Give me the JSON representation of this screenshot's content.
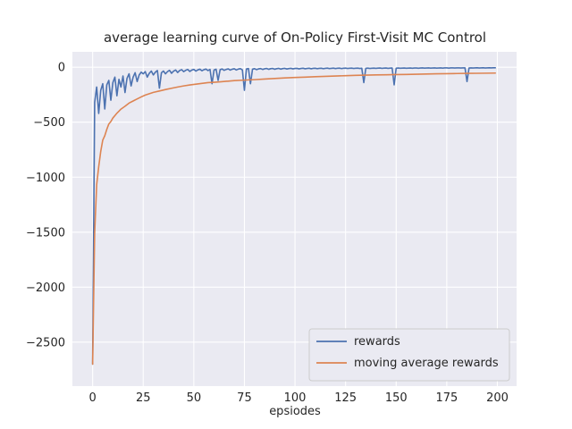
{
  "figure": {
    "title": "average learning curve of On-Policy First-Visit MC Control",
    "xlabel": "epsiodes"
  },
  "legend": {
    "items": [
      {
        "label": "rewards"
      },
      {
        "label": "moving average rewards"
      }
    ]
  },
  "chart_data": {
    "type": "line",
    "title": "average learning curve of On-Policy First-Visit MC Control",
    "xlabel": "epsiodes",
    "ylabel": "",
    "grid": true,
    "legend_position": "lower right",
    "xlim": [
      -10,
      209.5
    ],
    "ylim": [
      -2900,
      140
    ],
    "xticks": [
      {
        "value": 0,
        "label": "0"
      },
      {
        "value": 25,
        "label": "25"
      },
      {
        "value": 50,
        "label": "50"
      },
      {
        "value": 75,
        "label": "75"
      },
      {
        "value": 100,
        "label": "100"
      },
      {
        "value": 125,
        "label": "125"
      },
      {
        "value": 150,
        "label": "150"
      },
      {
        "value": 175,
        "label": "175"
      },
      {
        "value": 200,
        "label": "200"
      }
    ],
    "yticks": [
      {
        "value": 0,
        "label": "0"
      },
      {
        "value": -500,
        "label": "−500"
      },
      {
        "value": -1000,
        "label": "−1000"
      },
      {
        "value": -1500,
        "label": "−1500"
      },
      {
        "value": -2000,
        "label": "−2000"
      },
      {
        "value": -2500,
        "label": "−2500"
      }
    ],
    "colors": {
      "rewards": "#4c72b0",
      "moving_average": "#dd8452",
      "axes_background": "#eaeaf2",
      "grid": "#ffffff",
      "text": "#262626",
      "legend_face": "#eaeaf2",
      "legend_edge": "#cccccc"
    },
    "series": [
      {
        "name": "rewards",
        "color_key": "rewards",
        "x_start": 0,
        "x_step": 1,
        "values": [
          -2700,
          -320,
          -180,
          -420,
          -210,
          -150,
          -380,
          -160,
          -120,
          -300,
          -140,
          -90,
          -260,
          -110,
          -180,
          -80,
          -230,
          -100,
          -60,
          -170,
          -90,
          -50,
          -130,
          -70,
          -45,
          -60,
          -40,
          -90,
          -55,
          -35,
          -70,
          -45,
          -30,
          -190,
          -50,
          -35,
          -60,
          -40,
          -28,
          -55,
          -35,
          -25,
          -48,
          -30,
          -22,
          -40,
          -28,
          -20,
          -38,
          -26,
          -20,
          -35,
          -24,
          -18,
          -32,
          -22,
          -17,
          -30,
          -20,
          -150,
          -25,
          -18,
          -120,
          -22,
          -16,
          -28,
          -20,
          -15,
          -26,
          -18,
          -14,
          -25,
          -17,
          -13,
          -24,
          -210,
          -16,
          -12,
          -150,
          -18,
          -13,
          -22,
          -15,
          -12,
          -20,
          -14,
          -11,
          -19,
          -13,
          -11,
          -18,
          -13,
          -10,
          -17,
          -12,
          -10,
          -16,
          -12,
          -10,
          -15,
          -11,
          -10,
          -15,
          -11,
          -9,
          -14,
          -11,
          -9,
          -14,
          -10,
          -9,
          -13,
          -10,
          -9,
          -13,
          -10,
          -8,
          -12,
          -10,
          -8,
          -12,
          -9,
          -8,
          -12,
          -9,
          -8,
          -11,
          -9,
          -8,
          -11,
          -9,
          -8,
          -11,
          -9,
          -140,
          -10,
          -8,
          -11,
          -9,
          -8,
          -10,
          -8,
          -7,
          -10,
          -8,
          -7,
          -10,
          -8,
          -7,
          -160,
          -9,
          -7,
          -9,
          -8,
          -7,
          -9,
          -8,
          -7,
          -9,
          -7,
          -7,
          -9,
          -7,
          -6,
          -8,
          -7,
          -6,
          -8,
          -7,
          -6,
          -8,
          -7,
          -6,
          -8,
          -6,
          -6,
          -8,
          -6,
          -6,
          -7,
          -6,
          -6,
          -7,
          -6,
          -6,
          -130,
          -7,
          -6,
          -7,
          -6,
          -5,
          -7,
          -6,
          -5,
          -7,
          -6,
          -5,
          -6,
          -5,
          -5
        ]
      },
      {
        "name": "moving average rewards",
        "color_key": "moving_average",
        "points": [
          [
            0,
            -2700
          ],
          [
            1,
            -1510
          ],
          [
            2,
            -1067
          ],
          [
            3,
            -905
          ],
          [
            4,
            -766
          ],
          [
            5,
            -663
          ],
          [
            6,
            -623
          ],
          [
            7,
            -565
          ],
          [
            8,
            -516
          ],
          [
            9,
            -494
          ],
          [
            10,
            -462
          ],
          [
            12,
            -418
          ],
          [
            14,
            -381
          ],
          [
            16,
            -355
          ],
          [
            18,
            -326
          ],
          [
            20,
            -307
          ],
          [
            22,
            -288
          ],
          [
            24,
            -270
          ],
          [
            26,
            -253
          ],
          [
            28,
            -241
          ],
          [
            30,
            -229
          ],
          [
            33,
            -216
          ],
          [
            36,
            -203
          ],
          [
            39,
            -191
          ],
          [
            42,
            -180
          ],
          [
            45,
            -170
          ],
          [
            48,
            -161
          ],
          [
            51,
            -154
          ],
          [
            54,
            -147
          ],
          [
            57,
            -140
          ],
          [
            60,
            -137
          ],
          [
            63,
            -133
          ],
          [
            66,
            -128
          ],
          [
            70,
            -122
          ],
          [
            75,
            -117
          ],
          [
            80,
            -113
          ],
          [
            85,
            -107
          ],
          [
            90,
            -102
          ],
          [
            95,
            -97
          ],
          [
            100,
            -93
          ],
          [
            105,
            -90
          ],
          [
            110,
            -86
          ],
          [
            115,
            -83
          ],
          [
            120,
            -80
          ],
          [
            125,
            -77
          ],
          [
            130,
            -74
          ],
          [
            135,
            -72
          ],
          [
            140,
            -70
          ],
          [
            145,
            -69
          ],
          [
            150,
            -67
          ],
          [
            155,
            -66
          ],
          [
            160,
            -64
          ],
          [
            165,
            -62
          ],
          [
            170,
            -60
          ],
          [
            175,
            -59
          ],
          [
            180,
            -57
          ],
          [
            185,
            -56
          ],
          [
            190,
            -55
          ],
          [
            195,
            -54
          ],
          [
            199,
            -53
          ]
        ]
      }
    ]
  }
}
